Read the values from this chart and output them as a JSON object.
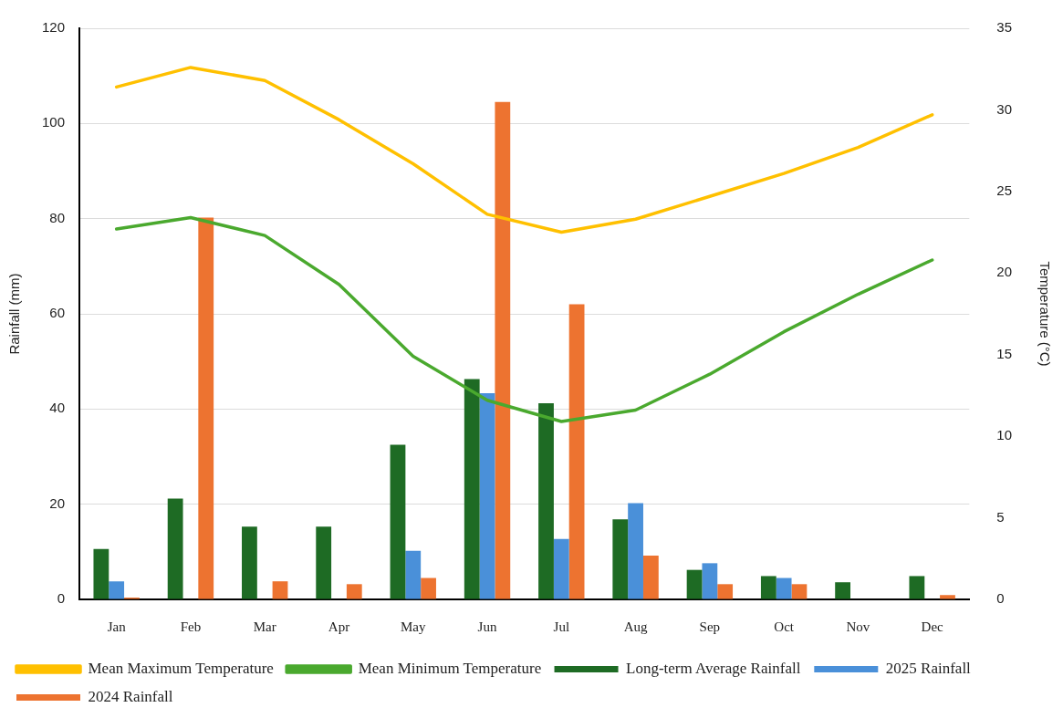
{
  "chart_data": {
    "type": "bar",
    "categories": [
      "Jan",
      "Feb",
      "Mar",
      "Apr",
      "May",
      "Jun",
      "Jul",
      "Aug",
      "Sep",
      "Oct",
      "Nov",
      "Dec"
    ],
    "series": [
      {
        "name": "Long-term Average Rainfall",
        "color": "#1e6b24",
        "values": [
          10.6,
          21.2,
          15.3,
          15.3,
          32.5,
          46.3,
          41.2,
          16.8,
          6.2,
          4.9,
          3.6,
          4.9
        ]
      },
      {
        "name": "2025 Rainfall",
        "color": "#4a90d9",
        "values": [
          3.8,
          null,
          null,
          null,
          10.2,
          43.3,
          12.7,
          20.2,
          7.6,
          4.5,
          null,
          null
        ]
      },
      {
        "name": "2024 Rainfall",
        "color": "#ed7330",
        "values": [
          0.4,
          80.2,
          3.8,
          3.2,
          4.5,
          104.5,
          62,
          9.2,
          3.2,
          3.2,
          null,
          0.9
        ]
      },
      {
        "name": "Mean Maximum Temperature",
        "type": "line",
        "axis": "y2",
        "color": "#ffc000",
        "values": [
          31.4,
          32.6,
          31.8,
          29.4,
          26.7,
          23.6,
          22.5,
          23.3,
          24.7,
          26.1,
          27.7,
          29.7
        ]
      },
      {
        "name": "Mean Minimum Temperature",
        "type": "line",
        "axis": "y2",
        "color": "#4aa92e",
        "values": [
          22.7,
          23.4,
          22.3,
          19.3,
          14.9,
          12.2,
          10.9,
          11.6,
          13.8,
          16.4,
          18.7,
          20.8
        ]
      }
    ],
    "ylabel": "Rainfall (mm)",
    "y2label": "Temperature (°C)",
    "ylim": [
      0,
      120
    ],
    "yticks": [
      0,
      20,
      40,
      60,
      80,
      100,
      120
    ],
    "y2lim": [
      0,
      35
    ],
    "y2ticks": [
      0,
      5,
      10,
      15,
      20,
      25,
      30,
      35
    ],
    "grid": "y",
    "legend": "bottom",
    "marker": "none",
    "line_style": "solid"
  }
}
